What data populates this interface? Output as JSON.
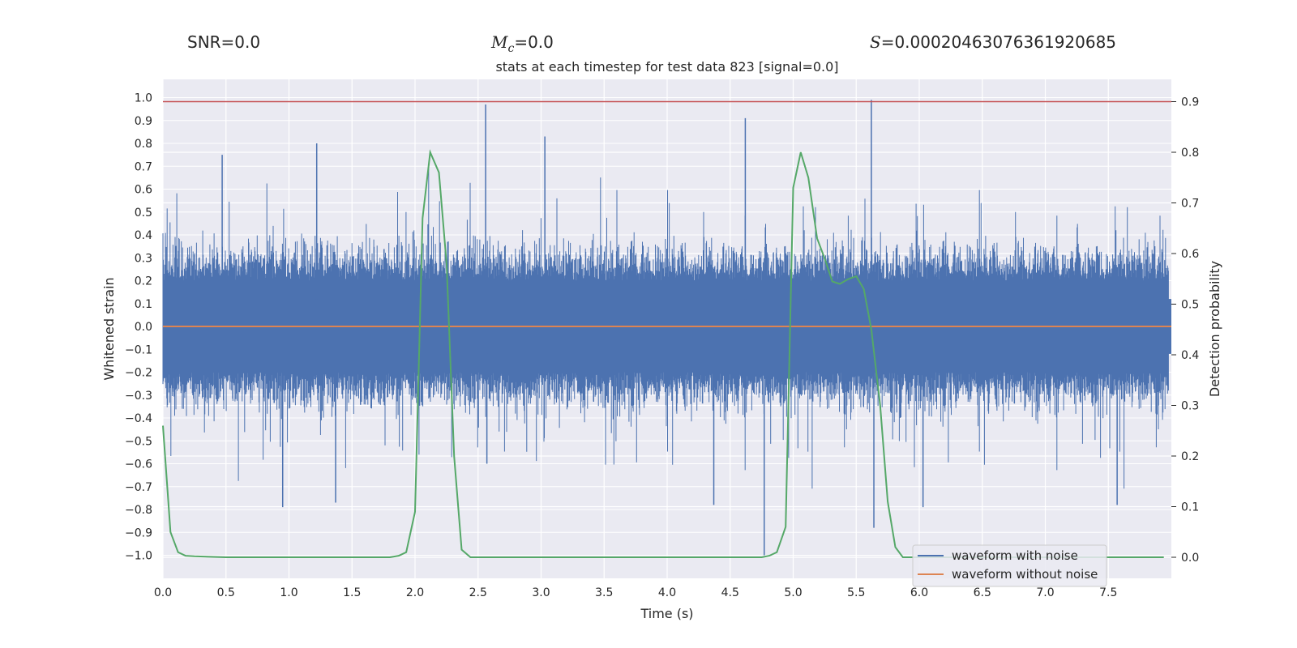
{
  "header": {
    "snr_label": "SNR=0.0",
    "mc_symbol": "M",
    "mc_subscript": "c",
    "mc_value": "=0.0",
    "s_symbol": "S",
    "s_value": "=0.00020463076361920685"
  },
  "chart_data": {
    "type": "line",
    "title": "stats at each timestep for test data 823 [signal=0.0]",
    "xlabel": "Time (s)",
    "ylabel": "Whitened strain",
    "y2label": "Detection probability",
    "xlim": [
      0.0,
      8.0
    ],
    "ylim": [
      -1.1,
      1.1
    ],
    "y2lim": [
      -0.04,
      0.94
    ],
    "x_ticks": [
      0.0,
      0.5,
      1.0,
      1.5,
      2.0,
      2.5,
      3.0,
      3.5,
      4.0,
      4.5,
      5.0,
      5.5,
      6.0,
      6.5,
      7.0,
      7.5
    ],
    "y_ticks": [
      -1.0,
      -0.9,
      -0.8,
      -0.7,
      -0.6,
      -0.5,
      -0.4,
      -0.3,
      -0.2,
      -0.1,
      0.0,
      0.1,
      0.2,
      0.3,
      0.4,
      0.5,
      0.6,
      0.7,
      0.8,
      0.9,
      1.0
    ],
    "y2_ticks": [
      0.0,
      0.1,
      0.2,
      0.3,
      0.4,
      0.5,
      0.6,
      0.7,
      0.8,
      0.9
    ],
    "grid": true,
    "legend_position": "lower-right",
    "threshold_line": {
      "y2": 0.9,
      "color": "#c44e52"
    },
    "series": [
      {
        "name": "waveform with noise",
        "color": "#4c72b0",
        "axis": "left",
        "envelope": "dense noise, typical amplitude ±0.3, peaks up to ±0.8",
        "spikes": [
          {
            "x": 2.56,
            "y": 0.97
          },
          {
            "x": 3.03,
            "y": 0.83
          },
          {
            "x": 4.62,
            "y": 0.91
          },
          {
            "x": 5.62,
            "y": 0.99
          },
          {
            "x": 1.22,
            "y": 0.8
          },
          {
            "x": 0.47,
            "y": 0.75
          },
          {
            "x": 2.57,
            "y": -0.6
          },
          {
            "x": 4.77,
            "y": -1.0
          },
          {
            "x": 5.64,
            "y": -0.88
          },
          {
            "x": 0.95,
            "y": -0.79
          },
          {
            "x": 1.37,
            "y": -0.77
          },
          {
            "x": 4.37,
            "y": -0.78
          },
          {
            "x": 6.03,
            "y": -0.79
          },
          {
            "x": 7.57,
            "y": -0.78
          }
        ]
      },
      {
        "name": "waveform without noise",
        "color": "#dd8452",
        "axis": "left",
        "x": [
          0.0,
          8.0
        ],
        "y": [
          0.0,
          0.0
        ]
      },
      {
        "name": "Detection probability",
        "color": "#55a868",
        "axis": "right",
        "x": [
          0.0,
          0.06,
          0.12,
          0.18,
          0.25,
          0.5,
          1.0,
          1.5,
          1.8,
          1.87,
          1.93,
          2.0,
          2.06,
          2.12,
          2.19,
          2.25,
          2.31,
          2.37,
          2.44,
          2.5,
          3.0,
          3.5,
          4.0,
          4.5,
          4.75,
          4.81,
          4.87,
          4.94,
          5.0,
          5.06,
          5.12,
          5.19,
          5.25,
          5.31,
          5.37,
          5.44,
          5.5,
          5.56,
          5.62,
          5.69,
          5.75,
          5.81,
          5.87,
          5.94,
          6.0,
          6.5,
          7.0,
          7.5,
          7.94
        ],
        "y": [
          0.26,
          0.05,
          0.01,
          0.003,
          0.002,
          0.0,
          0.0,
          0.0,
          0.0,
          0.003,
          0.01,
          0.09,
          0.67,
          0.8,
          0.76,
          0.58,
          0.2,
          0.015,
          0.0,
          0.0,
          0.0,
          0.0,
          0.0,
          0.0,
          0.0,
          0.003,
          0.01,
          0.06,
          0.73,
          0.8,
          0.75,
          0.63,
          0.59,
          0.545,
          0.54,
          0.55,
          0.555,
          0.53,
          0.45,
          0.3,
          0.11,
          0.02,
          0.0,
          0.0,
          0.0,
          0.0,
          0.0,
          0.0,
          0.0
        ]
      }
    ]
  }
}
